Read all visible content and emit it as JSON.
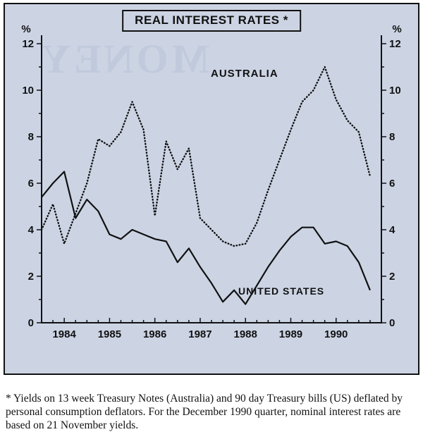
{
  "figure": {
    "title": "REAL INTEREST RATES *",
    "bg_color": "#ccd4e4",
    "line_color": "#111111",
    "australia_label": "AUSTRALIA",
    "us_label": "UNITED STATES",
    "ghost_text": "MONEY"
  },
  "footnote": "* Yields on 13 week Treasury Notes (Australia) and 90 day Treasury bills (US) deflated by personal consumption deflators. For the December 1990 quarter, nominal interest rates are based on 21 November yields.",
  "chart_data": {
    "type": "line",
    "title": "REAL INTEREST RATES *",
    "xlabel": "",
    "ylabel": "%",
    "ylim": [
      0,
      12
    ],
    "yticks": [
      0,
      2,
      4,
      6,
      8,
      10,
      12
    ],
    "xlim": [
      1983.5,
      1991.0
    ],
    "xticks_years": [
      1984,
      1985,
      1986,
      1987,
      1988,
      1989,
      1990
    ],
    "grid": false,
    "legend_position": "inline-labels",
    "x": [
      1983.5,
      1983.75,
      1984.0,
      1984.25,
      1984.5,
      1984.75,
      1985.0,
      1985.25,
      1985.5,
      1985.75,
      1986.0,
      1986.25,
      1986.5,
      1986.75,
      1987.0,
      1987.25,
      1987.5,
      1987.75,
      1988.0,
      1988.25,
      1988.5,
      1988.75,
      1989.0,
      1989.25,
      1989.5,
      1989.75,
      1990.0,
      1990.25,
      1990.5,
      1990.75
    ],
    "series": [
      {
        "name": "Australia",
        "style": "dotted",
        "values": [
          4.0,
          5.1,
          3.4,
          4.7,
          6.0,
          7.9,
          7.6,
          8.2,
          9.5,
          8.3,
          4.6,
          7.8,
          6.6,
          7.5,
          4.5,
          4.0,
          3.5,
          3.3,
          3.4,
          4.3,
          5.7,
          7.0,
          8.3,
          9.5,
          10.0,
          11.0,
          9.6,
          8.7,
          8.2,
          6.3
        ]
      },
      {
        "name": "United States",
        "style": "solid",
        "values": [
          5.4,
          6.0,
          6.5,
          4.5,
          5.3,
          4.8,
          3.8,
          3.6,
          4.0,
          3.8,
          3.6,
          3.5,
          2.6,
          3.2,
          2.4,
          1.7,
          0.9,
          1.4,
          0.8,
          1.6,
          2.4,
          3.1,
          3.7,
          4.1,
          4.1,
          3.4,
          3.5,
          3.3,
          2.6,
          1.4
        ]
      }
    ]
  }
}
